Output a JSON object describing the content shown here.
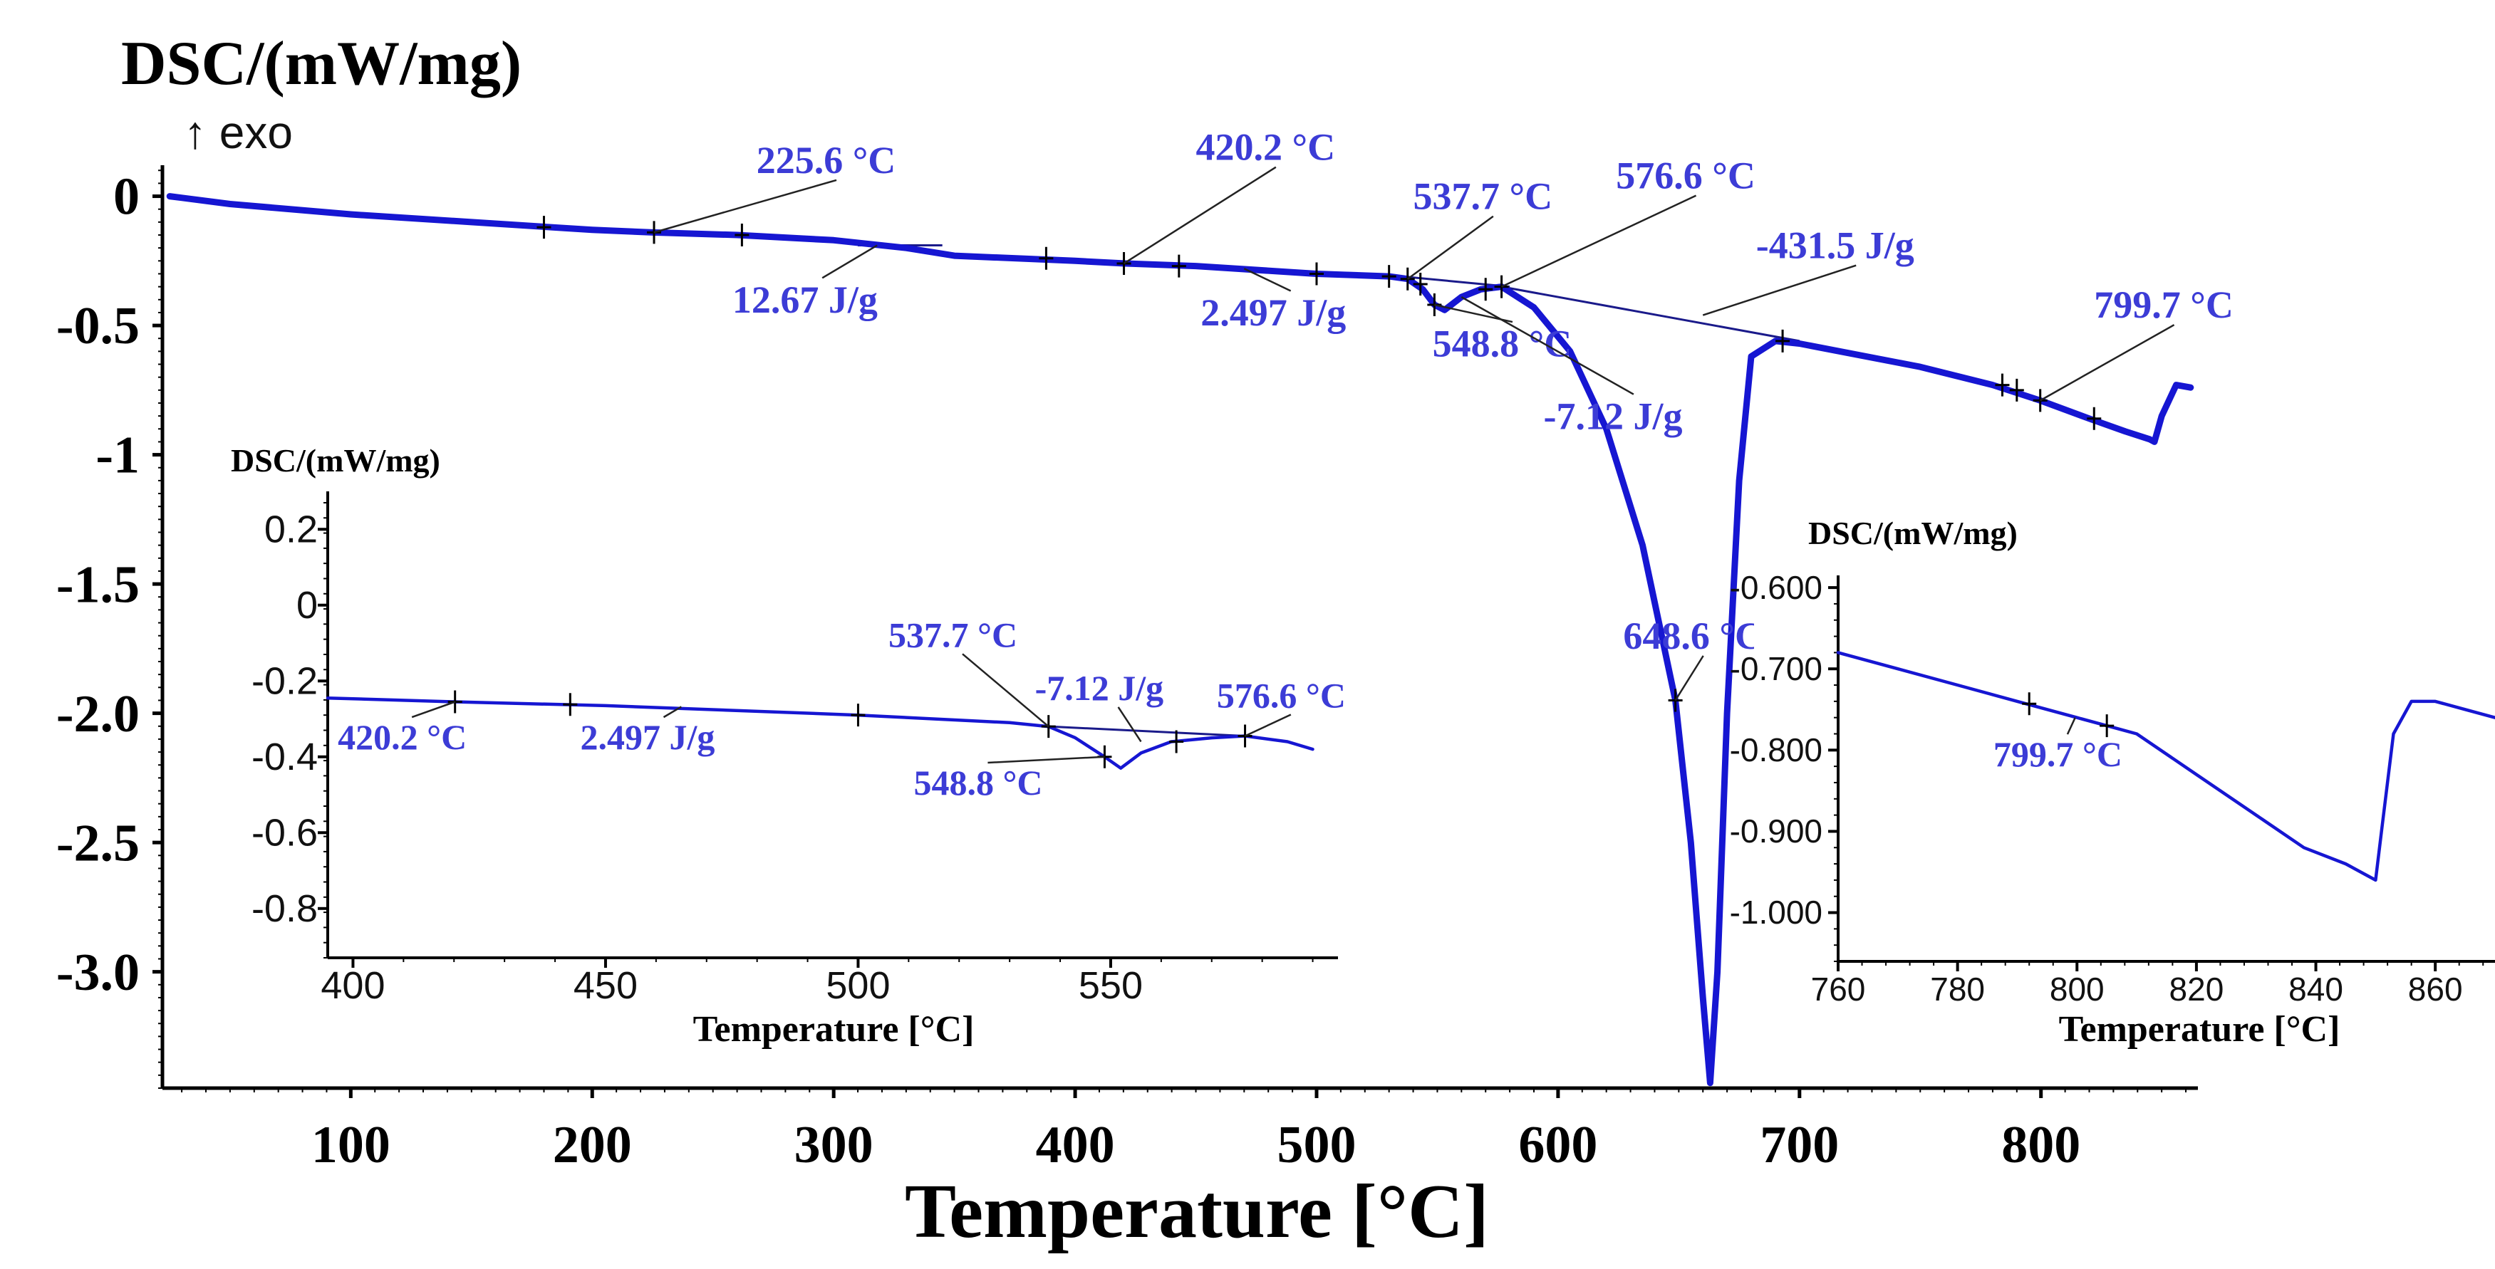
{
  "colors": {
    "curve": "#1616d2",
    "annotation": "#3c3cd6",
    "axis": "#000000",
    "baseline": "#1a1a8a"
  },
  "chart_data": [
    {
      "id": "main",
      "type": "line",
      "title": "",
      "ylabel": "DSC/(mW/mg)",
      "exo_marker": "↑ exo",
      "xlabel": "Temperature [°C]",
      "xlim": [
        22,
        865
      ],
      "ylim": [
        -3.45,
        0.12
      ],
      "x_ticks": [
        100,
        200,
        300,
        400,
        500,
        600,
        700,
        800
      ],
      "x_tick_labels": [
        "100",
        "200",
        "300",
        "400",
        "500",
        "600",
        "700",
        "800"
      ],
      "y_ticks": [
        0,
        -0.5,
        -1,
        -1.5,
        -2.0,
        -2.5,
        -3.0
      ],
      "y_tick_labels": [
        "0",
        "-0.5",
        "-1",
        "-1.5",
        "-2.0",
        "-2.5",
        "-3.0"
      ],
      "series": [
        {
          "name": "DSC",
          "x": [
            25,
            50,
            100,
            150,
            200,
            225,
            260,
            300,
            330,
            350,
            400,
            420,
            450,
            500,
            530,
            537.7,
            544,
            548.8,
            553,
            560,
            568,
            576.6,
            590,
            605,
            620,
            635,
            648.6,
            655,
            660,
            663,
            666,
            670,
            675,
            680,
            690,
            700,
            750,
            780,
            799.7,
            820,
            835,
            845,
            847,
            850,
            856,
            862
          ],
          "y": [
            0.0,
            -0.03,
            -0.07,
            -0.1,
            -0.13,
            -0.14,
            -0.15,
            -0.17,
            -0.2,
            -0.23,
            -0.25,
            -0.26,
            -0.27,
            -0.3,
            -0.31,
            -0.32,
            -0.36,
            -0.42,
            -0.44,
            -0.39,
            -0.36,
            -0.35,
            -0.43,
            -0.6,
            -0.9,
            -1.35,
            -1.95,
            -2.5,
            -3.1,
            -3.43,
            -3.0,
            -2.0,
            -1.1,
            -0.62,
            -0.56,
            -0.57,
            -0.66,
            -0.73,
            -0.79,
            -0.86,
            -0.91,
            -0.94,
            -0.95,
            -0.85,
            -0.73,
            -0.74
          ]
        }
      ],
      "baselines": [
        {
          "x": [
            535,
            580
          ],
          "y": [
            -0.31,
            -0.35
          ]
        },
        {
          "x": [
            576.6,
            700
          ],
          "y": [
            -0.35,
            -0.56
          ]
        },
        {
          "x": [
            310,
            345
          ],
          "y": [
            -0.19,
            -0.19
          ]
        }
      ],
      "tick_marks": [
        {
          "x": 180,
          "y": -0.12
        },
        {
          "x": 225.6,
          "y": -0.14
        },
        {
          "x": 262,
          "y": -0.15
        },
        {
          "x": 388,
          "y": -0.24
        },
        {
          "x": 420.2,
          "y": -0.26
        },
        {
          "x": 443,
          "y": -0.27
        },
        {
          "x": 500,
          "y": -0.3
        },
        {
          "x": 530,
          "y": -0.31
        },
        {
          "x": 537.7,
          "y": -0.32
        },
        {
          "x": 543,
          "y": -0.34
        },
        {
          "x": 548.8,
          "y": -0.42
        },
        {
          "x": 570,
          "y": -0.36
        },
        {
          "x": 576.6,
          "y": -0.35
        },
        {
          "x": 648.6,
          "y": -1.95
        },
        {
          "x": 693,
          "y": -0.56
        },
        {
          "x": 784,
          "y": -0.73
        },
        {
          "x": 790,
          "y": -0.75
        },
        {
          "x": 799.7,
          "y": -0.79
        },
        {
          "x": 822,
          "y": -0.86
        }
      ],
      "annotations": [
        {
          "text": "225.6 °C",
          "x": 268,
          "y": 0.09,
          "anchor_x": 225.6,
          "anchor_y": -0.14
        },
        {
          "text": "12.67 J/g",
          "x": 258,
          "y": -0.45,
          "anchor_x": 318,
          "anchor_y": -0.19
        },
        {
          "text": "420.2 °C",
          "x": 450,
          "y": 0.14,
          "anchor_x": 420.2,
          "anchor_y": -0.26
        },
        {
          "text": "2.497 J/g",
          "x": 452,
          "y": -0.5,
          "anchor_x": 470,
          "anchor_y": -0.28
        },
        {
          "text": "537.7 °C",
          "x": 540,
          "y": -0.05,
          "anchor_x": 537.7,
          "anchor_y": -0.32
        },
        {
          "text": "576.6 °C",
          "x": 624,
          "y": 0.03,
          "anchor_x": 576.6,
          "anchor_y": -0.35
        },
        {
          "text": "548.8 °C",
          "x": 548,
          "y": -0.62,
          "anchor_x": 548.8,
          "anchor_y": -0.42
        },
        {
          "text": "-7.12 J/g",
          "x": 594,
          "y": -0.9,
          "anchor_x": 560,
          "anchor_y": -0.39
        },
        {
          "text": "-431.5 J/g",
          "x": 682,
          "y": -0.24,
          "anchor_x": 660,
          "anchor_y": -0.46
        },
        {
          "text": "799.7 °C",
          "x": 822,
          "y": -0.47,
          "anchor_x": 799.7,
          "anchor_y": -0.79
        },
        {
          "text": "648.6 °C",
          "x": 627,
          "y": -1.75,
          "anchor_x": 648.6,
          "anchor_y": -1.95
        }
      ]
    },
    {
      "id": "inset-left",
      "type": "line",
      "ylabel": "DSC/(mW/mg)",
      "xlabel": "Temperature [°C]",
      "xlim": [
        395,
        595
      ],
      "ylim": [
        -0.93,
        0.3
      ],
      "x_ticks": [
        400,
        450,
        500,
        550
      ],
      "x_tick_labels": [
        "400",
        "450",
        "500",
        "550"
      ],
      "y_ticks": [
        0.2,
        0,
        -0.2,
        -0.4,
        -0.6,
        -0.8
      ],
      "y_tick_labels": [
        "0.2",
        "0",
        "-0.2",
        "-0.4",
        "-0.6",
        "-0.8"
      ],
      "series": [
        {
          "name": "DSC",
          "x": [
            395,
            420,
            450,
            500,
            530,
            537.7,
            543,
            548.8,
            552,
            556,
            562,
            570,
            576.6,
            585,
            590
          ],
          "y": [
            -0.245,
            -0.255,
            -0.265,
            -0.29,
            -0.31,
            -0.32,
            -0.35,
            -0.4,
            -0.43,
            -0.39,
            -0.36,
            -0.35,
            -0.345,
            -0.36,
            -0.38
          ]
        }
      ],
      "baselines": [
        {
          "x": [
            537.7,
            576.6
          ],
          "y": [
            -0.32,
            -0.345
          ]
        }
      ],
      "tick_marks": [
        {
          "x": 420.2,
          "y": -0.255
        },
        {
          "x": 443,
          "y": -0.262
        },
        {
          "x": 500,
          "y": -0.29
        },
        {
          "x": 537.7,
          "y": -0.32
        },
        {
          "x": 548.8,
          "y": -0.4
        },
        {
          "x": 563,
          "y": -0.36
        },
        {
          "x": 576.6,
          "y": -0.345
        }
      ],
      "annotations": [
        {
          "text": "420.2 °C",
          "x": 397,
          "y": -0.38,
          "anchor_x": 420.2,
          "anchor_y": -0.255
        },
        {
          "text": "2.497 J/g",
          "x": 445,
          "y": -0.38,
          "anchor_x": 465,
          "anchor_y": -0.268
        },
        {
          "text": "537.7 °C",
          "x": 506,
          "y": -0.11,
          "anchor_x": 537.7,
          "anchor_y": -0.32
        },
        {
          "text": "-7.12 J/g",
          "x": 535,
          "y": -0.25,
          "anchor_x": 556,
          "anchor_y": -0.36
        },
        {
          "text": "576.6 °C",
          "x": 571,
          "y": -0.27,
          "anchor_x": 576.6,
          "anchor_y": -0.345
        },
        {
          "text": "548.8 °C",
          "x": 511,
          "y": -0.5,
          "anchor_x": 548.8,
          "anchor_y": -0.4
        }
      ]
    },
    {
      "id": "inset-right",
      "type": "line",
      "ylabel": "DSC/(mW/mg)",
      "xlabel": "Temperature [°C]",
      "xlim": [
        760,
        870
      ],
      "ylim": [
        -1.06,
        -0.585
      ],
      "x_ticks": [
        760,
        780,
        800,
        820,
        840,
        860
      ],
      "x_tick_labels": [
        "760",
        "780",
        "800",
        "820",
        "840",
        "860"
      ],
      "y_ticks": [
        -0.6,
        -0.7,
        -0.8,
        -0.9,
        -1.0
      ],
      "y_tick_labels": [
        "-0.600",
        "-0.700",
        "-0.800",
        "-0.900",
        "-1.000"
      ],
      "series": [
        {
          "name": "DSC",
          "x": [
            760,
            770,
            780,
            790,
            800,
            805,
            810,
            820,
            830,
            838,
            845,
            850,
            851,
            853,
            856,
            860,
            865,
            870
          ],
          "y": [
            -0.68,
            -0.7,
            -0.72,
            -0.74,
            -0.76,
            -0.77,
            -0.78,
            -0.83,
            -0.88,
            -0.92,
            -0.94,
            -0.96,
            -0.9,
            -0.78,
            -0.74,
            -0.74,
            -0.75,
            -0.76
          ]
        }
      ],
      "baselines": [],
      "tick_marks": [
        {
          "x": 792,
          "y": -0.743
        },
        {
          "x": 805,
          "y": -0.77
        }
      ],
      "annotations": [
        {
          "text": "799.7 °C",
          "x": 786,
          "y": -0.82,
          "anchor_x": 799.7,
          "anchor_y": -0.76
        }
      ]
    }
  ]
}
